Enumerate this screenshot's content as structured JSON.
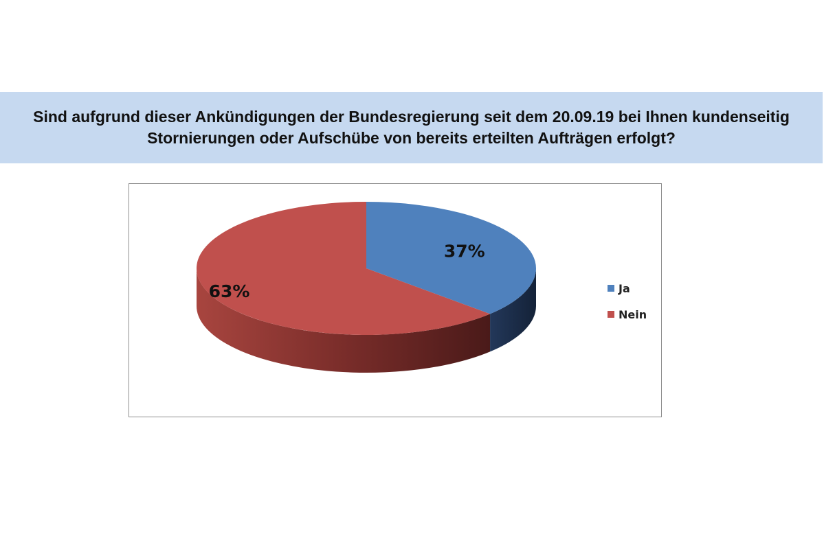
{
  "title": {
    "line1": "Sind aufgrund dieser Ankündigungen der Bundesregierung seit dem 20.09.19 bei Ihnen kundenseitig",
    "line2": "Stornierungen oder Aufschübe von bereits erteilten Aufträgen erfolgt?"
  },
  "chart_data": {
    "type": "pie",
    "three_d": true,
    "categories": [
      "Ja",
      "Nein"
    ],
    "values": [
      37,
      63
    ],
    "data_labels": [
      "37%",
      "63%"
    ],
    "colors": [
      "#4f81bd",
      "#c0504d"
    ],
    "legend_position": "right"
  }
}
